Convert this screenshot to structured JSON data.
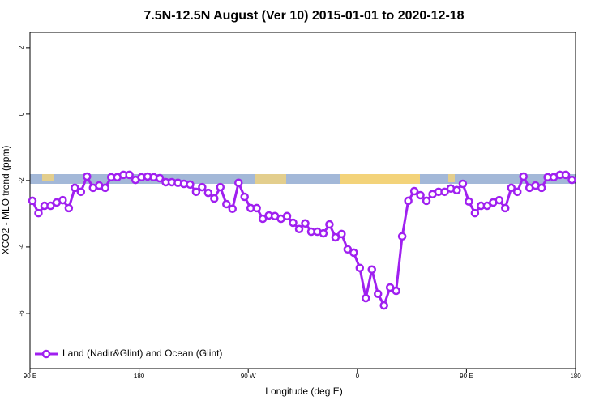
{
  "chart_data": {
    "type": "line",
    "title": "7.5N-12.5N August (Ver 10)   2015-01-01 to 2020-12-18",
    "x_label": "Longitude (deg E)",
    "y_label": "XCO2 - MLO trend (ppm)",
    "xlim": [
      90,
      540
    ],
    "xticks": [
      {
        "value": 90,
        "label": "90 E"
      },
      {
        "value": 180,
        "label": "180"
      },
      {
        "value": 270,
        "label": "90 W"
      },
      {
        "value": 360,
        "label": "0"
      },
      {
        "value": 450,
        "label": "90 E"
      },
      {
        "value": 540,
        "label": "180"
      }
    ],
    "ylim": [
      -7.66,
      2.46
    ],
    "yticks": [
      -6,
      -4,
      -2,
      0,
      2
    ],
    "legend": "bottom-left",
    "x": [
      92,
      97,
      102,
      107,
      112,
      117,
      122,
      127,
      132,
      137,
      142,
      147,
      152,
      157,
      162,
      167,
      172,
      177,
      182,
      187,
      192,
      197,
      202,
      207,
      212,
      217,
      222,
      227,
      232,
      237,
      242,
      247,
      252,
      257,
      262,
      267,
      272,
      277,
      282,
      287,
      292,
      297,
      302,
      307,
      312,
      317,
      322,
      327,
      332,
      337,
      342,
      347,
      352,
      357,
      362,
      367,
      372,
      377,
      382,
      387,
      392,
      397,
      402,
      407,
      412,
      417,
      422,
      427,
      432,
      437,
      442,
      447,
      452,
      457,
      462,
      467,
      472,
      477,
      482,
      487,
      492,
      497,
      502,
      507,
      512,
      517,
      522,
      527,
      532,
      537
    ],
    "series": [
      {
        "name": "Land (Nadir&Glint) and Ocean (Glint)",
        "color": "#a020f0",
        "values": [
          -2.61,
          -2.98,
          -2.76,
          -2.76,
          -2.66,
          -2.59,
          -2.83,
          -2.22,
          -2.34,
          -1.88,
          -2.22,
          -2.15,
          -2.22,
          -1.9,
          -1.9,
          -1.83,
          -1.83,
          -1.98,
          -1.9,
          -1.88,
          -1.9,
          -1.93,
          -2.05,
          -2.05,
          -2.07,
          -2.1,
          -2.12,
          -2.34,
          -2.2,
          -2.37,
          -2.54,
          -2.2,
          -2.71,
          -2.85,
          -2.07,
          -2.49,
          -2.83,
          -2.83,
          -3.15,
          -3.05,
          -3.07,
          -3.15,
          -3.07,
          -3.27,
          -3.46,
          -3.29,
          -3.54,
          -3.54,
          -3.59,
          -3.32,
          -3.71,
          -3.61,
          -4.07,
          -4.17,
          -4.63,
          -5.54,
          -4.68,
          -5.41,
          -5.76,
          -5.22,
          -5.32,
          -3.68,
          -2.61,
          -2.32,
          -2.44,
          -2.61,
          -2.41,
          -2.34,
          -2.34,
          -2.24,
          -2.29,
          -2.1,
          -2.63,
          -2.98,
          -2.76,
          -2.76,
          -2.66,
          -2.59,
          -2.83,
          -2.22,
          -2.34,
          -1.88,
          -2.22,
          -2.15,
          -2.22,
          -1.9,
          -1.9,
          -1.83,
          -1.83,
          -1.98
        ]
      }
    ]
  }
}
